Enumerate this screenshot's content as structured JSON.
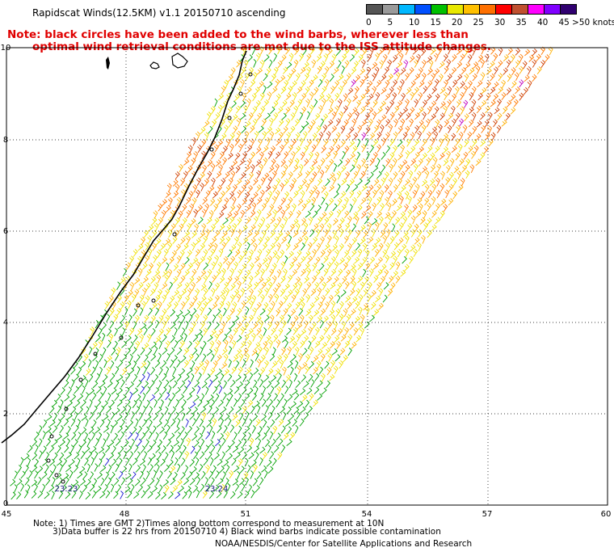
{
  "title": "Rapidscat Winds(12.5KM) v1.1 20150710 ascending",
  "note": {
    "line1": "Note: black circles have been added to the wind barbs, wherever less than",
    "line2": "optimal wind retrieval conditions are met due to the ISS attitude changes."
  },
  "legend": {
    "labels": [
      "0",
      "5",
      "10",
      "15",
      "20",
      "25",
      "30",
      "35",
      "40",
      "45",
      ">50 knots"
    ],
    "colors": [
      "#555555",
      "#9a9a9a",
      "#00b8ff",
      "#0050ff",
      "#00c000",
      "#e8e800",
      "#ffc000",
      "#ff7000",
      "#ff0000",
      "#c05030",
      "#ff00ff",
      "#8000ff",
      "#300070"
    ]
  },
  "map": {
    "lon_labels": [
      "45",
      "48",
      "51",
      "54",
      "57",
      "60"
    ],
    "lat_labels": [
      "0",
      "2",
      "4",
      "6",
      "8",
      "10"
    ],
    "pass_times": [
      "23:23",
      "23:24"
    ],
    "swath_colors": {
      "green": "#00a000",
      "blue": "#1818d0",
      "yellow": "#f0e000",
      "gold": "#ffb000",
      "orange": "#ff7a00",
      "red": "#d04000",
      "magenta": "#c000c0"
    }
  },
  "footer": {
    "line1": "Note: 1) Times are GMT 2)Times along bottom correspond to measurement at 10N",
    "line2": "3)Data buffer is 22 hrs from 20150710 4) Black wind barbs indicate possible contamination",
    "line3": "NOAA/NESDIS/Center for Satellite Applications and Research"
  }
}
